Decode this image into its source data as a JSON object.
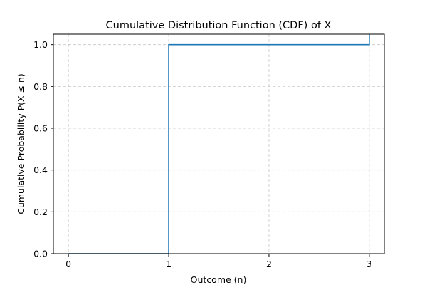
{
  "chart_data": {
    "type": "line",
    "step": "post",
    "title": "Cumulative Distribution Function (CDF) of X",
    "xlabel": "Outcome (n)",
    "ylabel": "Cumulative Probability P(X ≤ n)",
    "xlim": [
      -0.15,
      3.15
    ],
    "ylim": [
      0.0,
      1.05
    ],
    "xticks": [
      0,
      1,
      2,
      3
    ],
    "xtick_labels": [
      "0",
      "1",
      "2",
      "3"
    ],
    "yticks": [
      0.0,
      0.2,
      0.4,
      0.6,
      0.8,
      1.0
    ],
    "ytick_labels": [
      "0.0",
      "0.2",
      "0.4",
      "0.6",
      "0.8",
      "1.0"
    ],
    "grid": true,
    "series": [
      {
        "x": [
          0,
          1,
          2,
          3
        ],
        "values": [
          0.0,
          1.0,
          1.0,
          1.1
        ],
        "color": "#1f77b4"
      }
    ]
  }
}
